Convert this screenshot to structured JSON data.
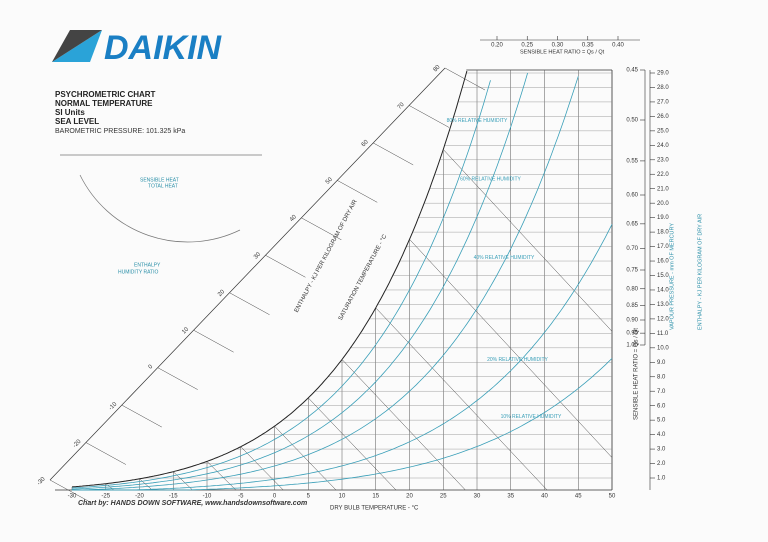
{
  "header": {
    "brand": "DAIKIN",
    "lines": [
      "PSYCHROMETRIC CHART",
      "NORMAL TEMPERATURE",
      "SI Units",
      "SEA LEVEL",
      "BAROMETRIC PRESSURE: 101.325 kPa"
    ],
    "credit": "Chart by: HANDS DOWN SOFTWARE, www.handsdownsoftware.com"
  },
  "protractor": {
    "labels": [
      "SENSIBLE HEAT",
      "TOTAL HEAT",
      "ENTHALPY",
      "HUMIDITY RATIO"
    ]
  },
  "chart_data": {
    "type": "psychrometric",
    "xlabel": "DRY BULB TEMPERATURE - °C",
    "xlim": [
      -30,
      50
    ],
    "xticks": [
      -30,
      -25,
      -20,
      -15,
      -10,
      -5,
      0,
      5,
      10,
      15,
      20,
      25,
      30,
      35,
      40,
      45,
      50
    ],
    "ylabel": "VAPOUR PRESSURE - mm OF MERCURY",
    "ylim": [
      1,
      29
    ],
    "yticks": [
      {
        "value": 1,
        "label": "1.0"
      },
      {
        "value": 2,
        "label": "2.0"
      },
      {
        "value": 3,
        "label": "3.0"
      },
      {
        "value": 4,
        "label": "4.0"
      },
      {
        "value": 5,
        "label": "5.0"
      },
      {
        "value": 6,
        "label": "6.0"
      },
      {
        "value": 7,
        "label": "7.0"
      },
      {
        "value": 8,
        "label": "8.0"
      },
      {
        "value": 9,
        "label": "9.0"
      },
      {
        "value": 10,
        "label": "10.0"
      },
      {
        "value": 11,
        "label": "11.0"
      },
      {
        "value": 12,
        "label": "12.0"
      },
      {
        "value": 13,
        "label": "13.0"
      },
      {
        "value": 14,
        "label": "14.0"
      },
      {
        "value": 15,
        "label": "15.0"
      },
      {
        "value": 16,
        "label": "16.0"
      },
      {
        "value": 17,
        "label": "17.0"
      },
      {
        "value": 18,
        "label": "18.0"
      },
      {
        "value": 19,
        "label": "19.0"
      },
      {
        "value": 20,
        "label": "20.0"
      },
      {
        "value": 21,
        "label": "21.0"
      },
      {
        "value": 22,
        "label": "22.0"
      },
      {
        "value": 23,
        "label": "23.0"
      },
      {
        "value": 24,
        "label": "24.0"
      },
      {
        "value": 25,
        "label": "25.0"
      },
      {
        "value": 26,
        "label": "26.0"
      },
      {
        "value": 27,
        "label": "27.0"
      },
      {
        "value": 28,
        "label": "28.0"
      },
      {
        "value": 29,
        "label": "29.0"
      }
    ],
    "shr_label": "SENSIBLE HEAT RATIO = Qs / Qt",
    "shr_ticks": [
      {
        "value": 0.45,
        "label": "0.45"
      },
      {
        "value": 0.5,
        "label": "0.50"
      },
      {
        "value": 0.55,
        "label": "0.55"
      },
      {
        "value": 0.6,
        "label": "0.60"
      },
      {
        "value": 0.65,
        "label": "0.65"
      },
      {
        "value": 0.7,
        "label": "0.70"
      },
      {
        "value": 0.75,
        "label": "0.75"
      },
      {
        "value": 0.8,
        "label": "0.80"
      },
      {
        "value": 0.85,
        "label": "0.85"
      },
      {
        "value": 0.9,
        "label": "0.90"
      },
      {
        "value": 0.95,
        "label": "0.95"
      },
      {
        "value": 1,
        "label": "1.00"
      }
    ],
    "shr_top_ticks": [
      {
        "value": 0.2,
        "label": "0.20"
      },
      {
        "value": 0.25,
        "label": "0.25"
      },
      {
        "value": 0.3,
        "label": "0.30"
      },
      {
        "value": 0.35,
        "label": "0.35"
      },
      {
        "value": 0.4,
        "label": "0.40"
      }
    ],
    "enthalpy_label": "ENTHALPY - KJ PER KILOGRAM OF DRY AIR",
    "enthalpy_lim": [
      -30,
      80
    ],
    "enthalpy_ticks": [
      -30,
      -20,
      -10,
      0,
      10,
      20,
      30,
      40,
      50,
      60,
      70,
      80
    ],
    "saturation_label": "SATURATION TEMPERATURE - °C",
    "rh_curves": [
      {
        "value": 10,
        "label": "10% RELATIVE HUMIDITY"
      },
      {
        "value": 20,
        "label": "20% RELATIVE HUMIDITY"
      },
      {
        "value": 40,
        "label": "40% RELATIVE HUMIDITY"
      },
      {
        "value": 60,
        "label": "60% RELATIVE HUMIDITY"
      },
      {
        "value": 80,
        "label": "80% RELATIVE HUMIDITY"
      }
    ],
    "color": "#3a9fb8"
  }
}
